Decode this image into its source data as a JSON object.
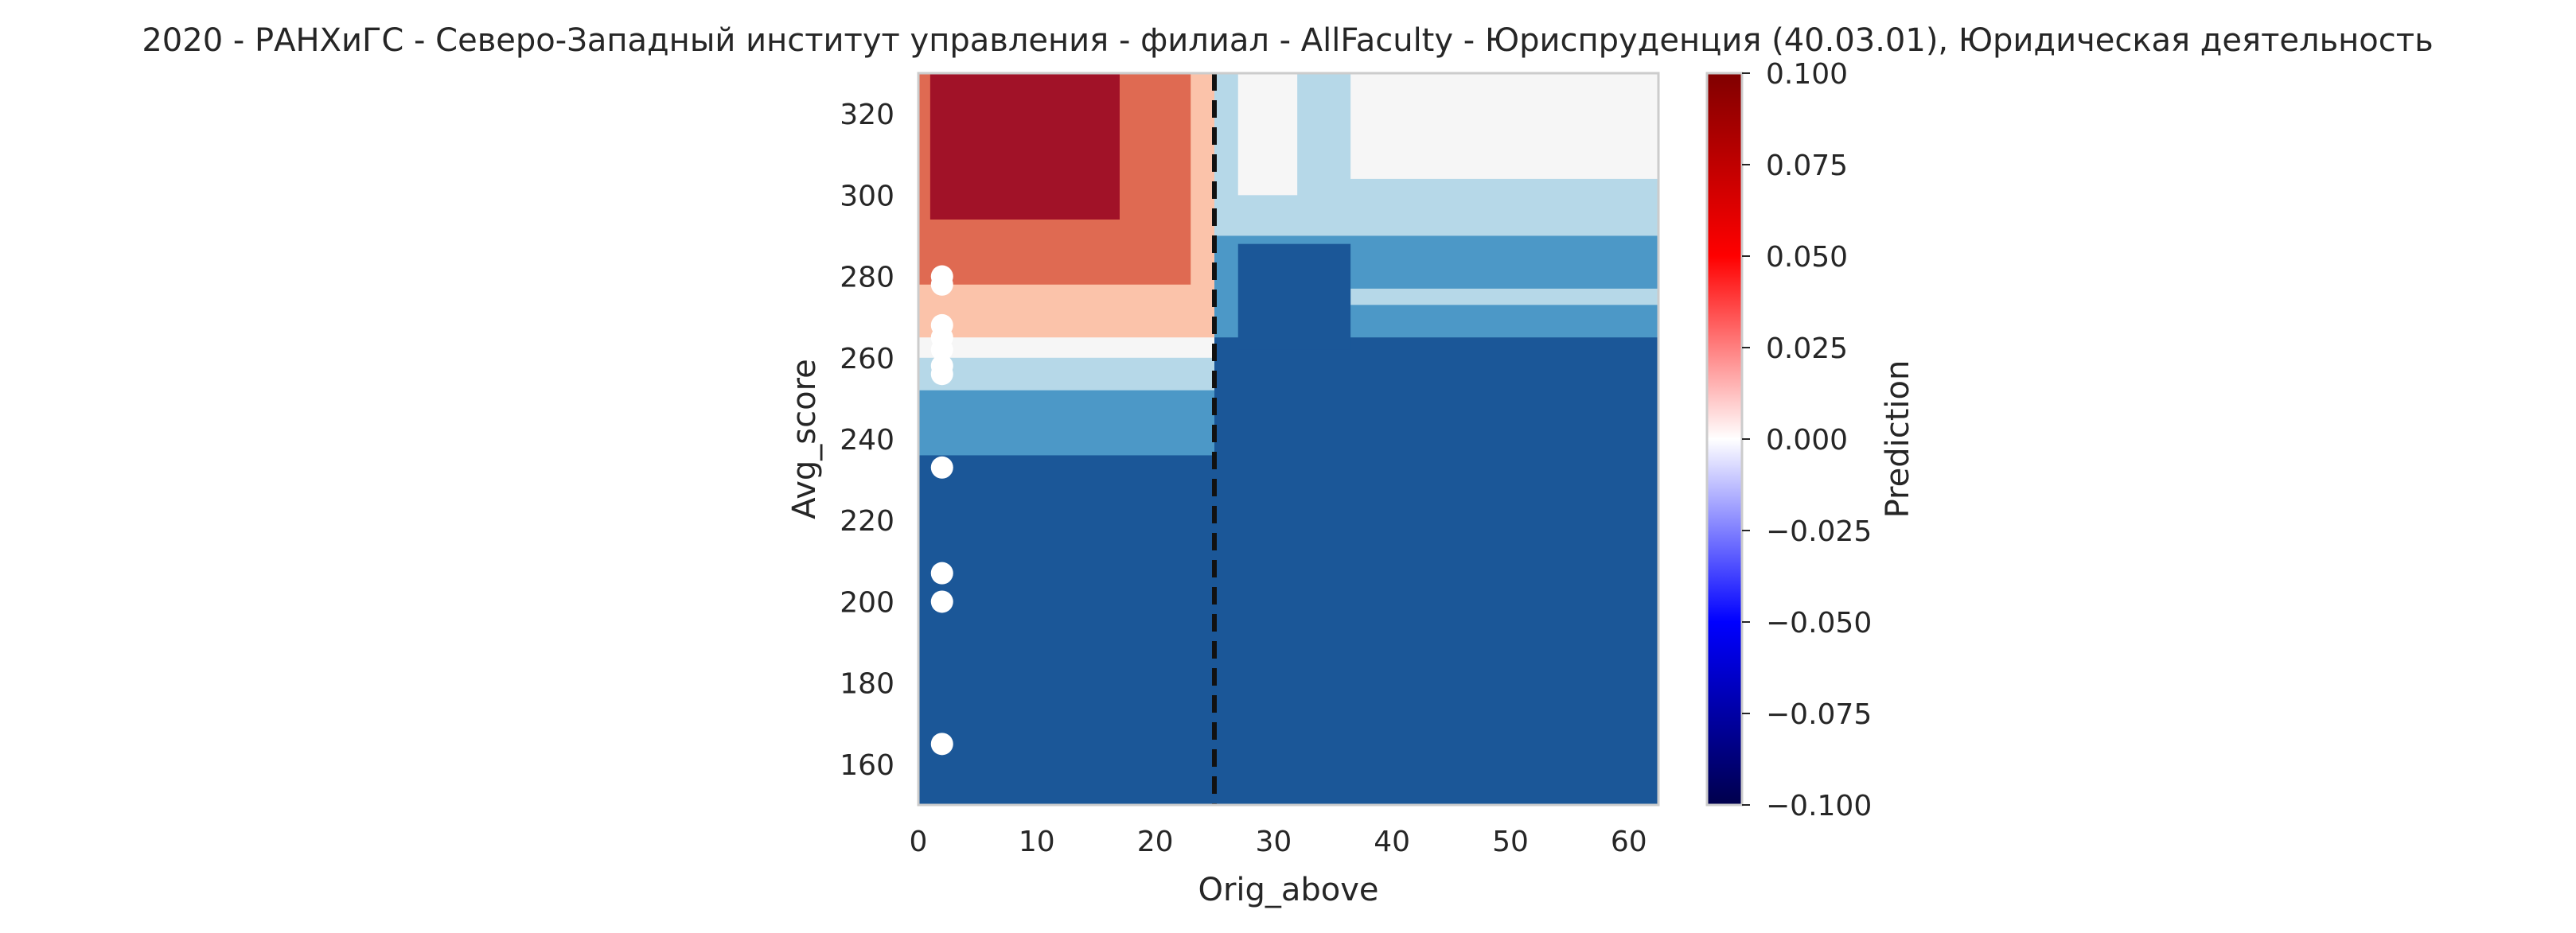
{
  "chart_data": {
    "type": "heatmap",
    "title": "2020 - РАНХиГС - Северо-Западный институт управления - филиал - AllFaculty - Юриспруденция (40.03.01), Юридическая деятельность",
    "xlabel": "Orig_above",
    "ylabel": "Avg_score",
    "xlim": [
      0,
      62.5
    ],
    "ylim": [
      150,
      330
    ],
    "xticks": [
      0,
      10,
      20,
      30,
      40,
      50,
      60
    ],
    "yticks": [
      160,
      180,
      200,
      220,
      240,
      260,
      280,
      300,
      320
    ],
    "grid": false,
    "colorbar": {
      "label": "Prediction",
      "range": [
        -0.1,
        0.1
      ],
      "ticks": [
        -0.1,
        -0.075,
        -0.05,
        -0.025,
        0.0,
        0.025,
        0.05,
        0.075,
        0.1
      ],
      "tick_labels": [
        "−0.100",
        "−0.075",
        "−0.050",
        "−0.025",
        "0.000",
        "0.025",
        "0.050",
        "0.075",
        "0.100"
      ],
      "colormap": "seismic",
      "stops": [
        "#00004c",
        "#0000ff",
        "#ffffff",
        "#ff0000",
        "#800000"
      ]
    },
    "contour_levels": [
      {
        "level": -0.02,
        "color": "#1b5798"
      },
      {
        "level": -0.014,
        "color": "#4c98c7"
      },
      {
        "level": -0.007,
        "color": "#b6d8e8"
      },
      {
        "level": 0.0,
        "color": "#f6f6f6"
      },
      {
        "level": 0.007,
        "color": "#fbc3aa"
      },
      {
        "level": 0.014,
        "color": "#df6a52"
      },
      {
        "level": 0.02,
        "color": "#a11228"
      }
    ],
    "regions": [
      {
        "x": [
          0,
          62.5
        ],
        "y": [
          150,
          330
        ],
        "value": -0.02
      },
      {
        "x": [
          0,
          25
        ],
        "y": [
          236,
          330
        ],
        "value": -0.014
      },
      {
        "x": [
          0,
          25
        ],
        "y": [
          252,
          330
        ],
        "value": -0.007
      },
      {
        "x": [
          0,
          25
        ],
        "y": [
          260,
          330
        ],
        "value": 0.0
      },
      {
        "x": [
          0,
          25
        ],
        "y": [
          265,
          330
        ],
        "value": 0.007
      },
      {
        "x": [
          0,
          23
        ],
        "y": [
          278,
          330
        ],
        "value": 0.014
      },
      {
        "x": [
          1,
          17
        ],
        "y": [
          294,
          330
        ],
        "value": 0.02
      },
      {
        "x": [
          25,
          62.5
        ],
        "y": [
          265,
          330
        ],
        "value": -0.014
      },
      {
        "x": [
          36.5,
          62.5
        ],
        "y": [
          273,
          277
        ],
        "value": -0.007
      },
      {
        "x": [
          27,
          36.5
        ],
        "y": [
          262,
          288
        ],
        "value": -0.02
      },
      {
        "x": [
          25,
          62.5
        ],
        "y": [
          290,
          330
        ],
        "value": -0.007
      },
      {
        "x": [
          27,
          32
        ],
        "y": [
          300,
          330
        ],
        "value": 0.0
      },
      {
        "x": [
          36.5,
          62.5
        ],
        "y": [
          304,
          330
        ],
        "value": 0.0
      }
    ],
    "scatter": {
      "color": "#ffffff",
      "x": [
        2,
        2,
        2,
        2,
        2,
        2,
        2,
        2,
        2,
        2,
        2
      ],
      "y": [
        165,
        200,
        207,
        233,
        256,
        258,
        262,
        265,
        268,
        278,
        280
      ]
    },
    "threshold_line": {
      "x": 25,
      "style": "dashed",
      "color": "#111111"
    }
  }
}
